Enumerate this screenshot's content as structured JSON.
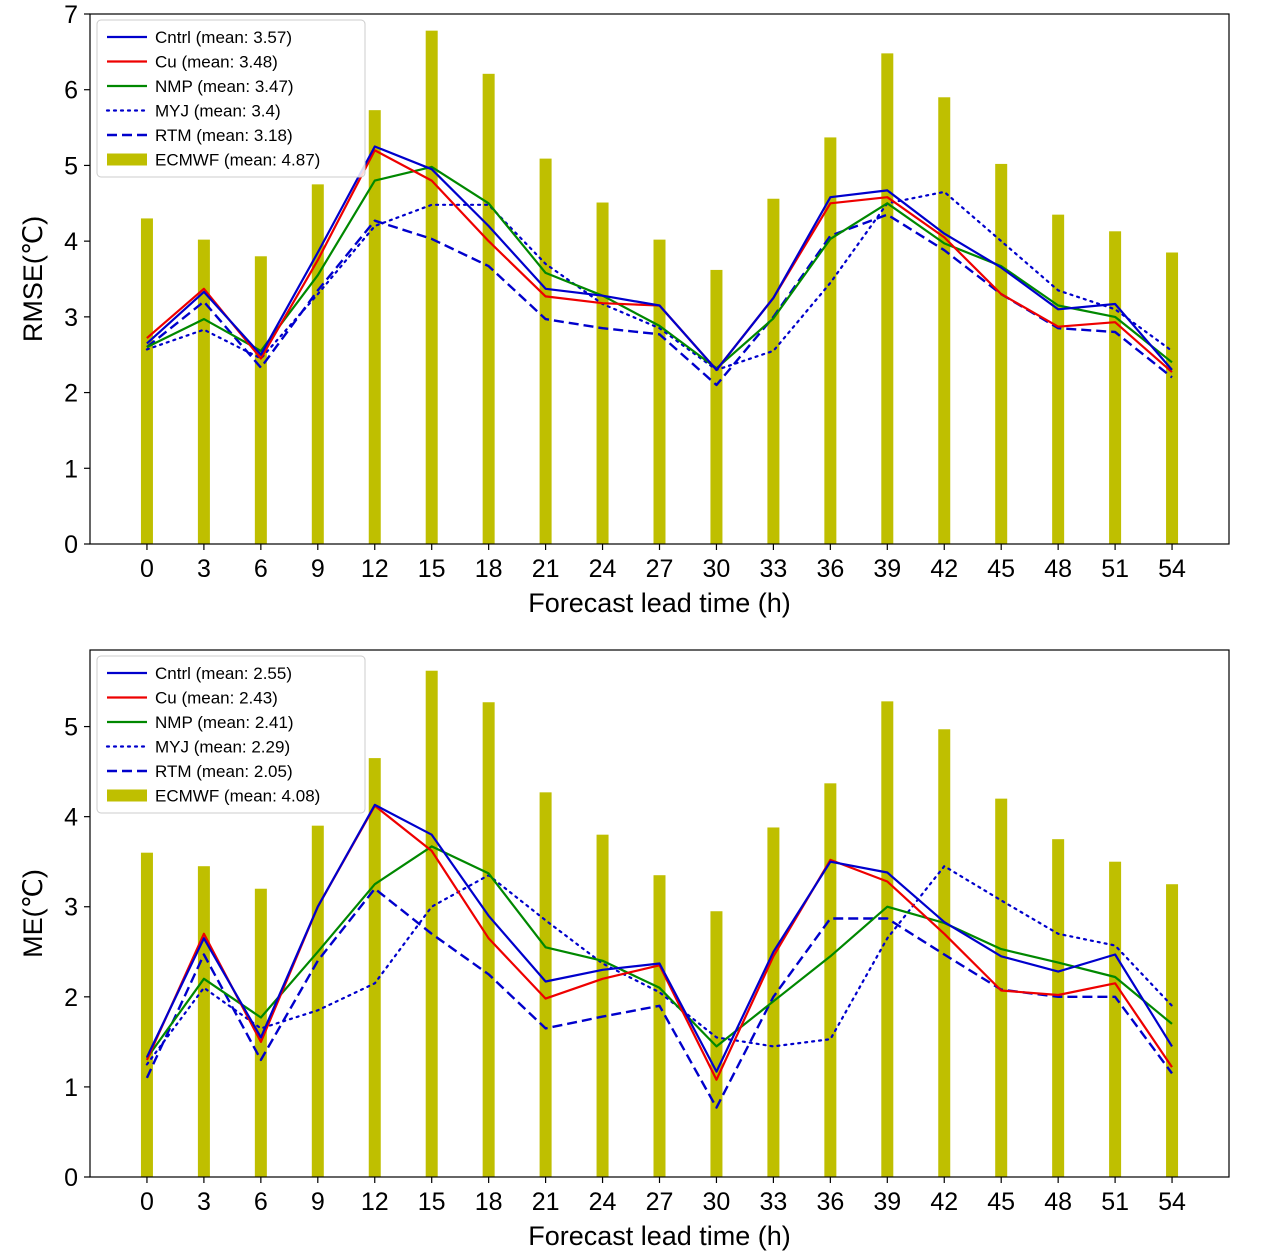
{
  "chart_data": [
    {
      "type": "bar+line",
      "xlabel": "Forecast lead time (h)",
      "ylabel": "RMSE(℃)",
      "ylim": [
        0,
        7
      ],
      "yticks": [
        0,
        1,
        2,
        3,
        4,
        5,
        6,
        7
      ],
      "x": [
        0,
        3,
        6,
        9,
        12,
        15,
        18,
        21,
        24,
        27,
        30,
        33,
        36,
        39,
        42,
        45,
        48,
        51,
        54
      ],
      "xlim": [
        -3,
        57
      ],
      "legend_position": "top-left",
      "grid": false,
      "bar_series": {
        "name": "ECMWF (mean: 4.87)",
        "color": "#bfbf00",
        "values": [
          4.3,
          4.02,
          3.8,
          4.75,
          5.73,
          6.78,
          6.21,
          5.09,
          4.51,
          4.02,
          3.62,
          4.56,
          5.37,
          6.48,
          5.9,
          5.02,
          4.35,
          4.13,
          3.85
        ]
      },
      "series": [
        {
          "name": "Cntrl (mean: 3.57)",
          "color": "#0000cc",
          "style": "solid",
          "width": 2.2,
          "values": [
            2.65,
            3.33,
            2.5,
            3.85,
            5.25,
            4.95,
            4.2,
            3.37,
            3.28,
            3.15,
            2.3,
            3.25,
            4.58,
            4.67,
            4.1,
            3.65,
            3.1,
            3.17,
            2.3
          ]
        },
        {
          "name": "Cu (mean: 3.48)",
          "color": "#ee0000",
          "style": "solid",
          "width": 2.2,
          "values": [
            2.72,
            3.37,
            2.45,
            3.75,
            5.2,
            4.8,
            4.0,
            3.27,
            3.18,
            3.15,
            2.3,
            3.25,
            4.5,
            4.58,
            4.05,
            3.3,
            2.87,
            2.93,
            2.27
          ]
        },
        {
          "name": "NMP (mean: 3.47)",
          "color": "#008800",
          "style": "solid",
          "width": 2.2,
          "values": [
            2.6,
            2.97,
            2.55,
            3.55,
            4.8,
            4.98,
            4.5,
            3.58,
            3.28,
            2.88,
            2.32,
            2.98,
            4.03,
            4.5,
            3.97,
            3.67,
            3.15,
            3.0,
            2.4
          ]
        },
        {
          "name": "MYJ (mean: 3.4)",
          "color": "#0000cc",
          "style": "dotted",
          "width": 2.2,
          "values": [
            2.57,
            2.83,
            2.45,
            3.3,
            4.2,
            4.48,
            4.48,
            3.7,
            3.17,
            2.85,
            2.3,
            2.55,
            3.45,
            4.5,
            4.65,
            4.0,
            3.35,
            3.1,
            2.55
          ]
        },
        {
          "name": "RTM (mean: 3.18)",
          "color": "#0000cc",
          "style": "dashed",
          "width": 2.4,
          "values": [
            2.6,
            3.2,
            2.33,
            3.35,
            4.27,
            4.03,
            3.67,
            2.97,
            2.85,
            2.77,
            2.1,
            3.0,
            4.07,
            4.35,
            3.88,
            3.3,
            2.85,
            2.8,
            2.2
          ]
        }
      ]
    },
    {
      "type": "bar+line",
      "xlabel": "Forecast lead time (h)",
      "ylabel": "ME(℃)",
      "ylim": [
        0,
        5.85
      ],
      "yticks": [
        0,
        1,
        2,
        3,
        4,
        5
      ],
      "x": [
        0,
        3,
        6,
        9,
        12,
        15,
        18,
        21,
        24,
        27,
        30,
        33,
        36,
        39,
        42,
        45,
        48,
        51,
        54
      ],
      "xlim": [
        -3,
        57
      ],
      "legend_position": "top-left",
      "grid": false,
      "bar_series": {
        "name": "ECMWF (mean: 4.08)",
        "color": "#bfbf00",
        "values": [
          3.6,
          3.45,
          3.2,
          3.9,
          4.65,
          5.62,
          5.27,
          4.27,
          3.8,
          3.35,
          2.95,
          3.88,
          4.37,
          5.28,
          4.97,
          4.2,
          3.75,
          3.5,
          3.25
        ]
      },
      "series": [
        {
          "name": "Cntrl (mean: 2.55)",
          "color": "#0000cc",
          "style": "solid",
          "width": 2.2,
          "values": [
            1.33,
            2.65,
            1.55,
            3.0,
            4.13,
            3.8,
            2.9,
            2.17,
            2.3,
            2.37,
            1.17,
            2.5,
            3.5,
            3.38,
            2.83,
            2.45,
            2.28,
            2.47,
            1.45
          ]
        },
        {
          "name": "Cu (mean: 2.43)",
          "color": "#ee0000",
          "style": "solid",
          "width": 2.2,
          "values": [
            1.3,
            2.7,
            1.5,
            3.0,
            4.12,
            3.62,
            2.65,
            1.98,
            2.2,
            2.35,
            1.08,
            2.45,
            3.52,
            3.28,
            2.7,
            2.07,
            2.02,
            2.15,
            1.22
          ]
        },
        {
          "name": "NMP (mean: 2.41)",
          "color": "#008800",
          "style": "solid",
          "width": 2.2,
          "values": [
            1.32,
            2.2,
            1.77,
            2.5,
            3.25,
            3.67,
            3.37,
            2.55,
            2.4,
            2.1,
            1.45,
            1.95,
            2.45,
            3.0,
            2.82,
            2.53,
            2.38,
            2.22,
            1.7
          ]
        },
        {
          "name": "MYJ (mean: 2.29)",
          "color": "#0000cc",
          "style": "dotted",
          "width": 2.2,
          "values": [
            1.25,
            2.1,
            1.65,
            1.85,
            2.15,
            3.0,
            3.35,
            2.85,
            2.37,
            2.05,
            1.55,
            1.45,
            1.53,
            2.65,
            3.45,
            3.07,
            2.7,
            2.57,
            1.9
          ]
        },
        {
          "name": "RTM (mean: 2.05)",
          "color": "#0000cc",
          "style": "dashed",
          "width": 2.4,
          "values": [
            1.1,
            2.47,
            1.3,
            2.4,
            3.2,
            2.7,
            2.25,
            1.65,
            1.78,
            1.9,
            0.77,
            2.0,
            2.87,
            2.87,
            2.47,
            2.08,
            2.0,
            2.0,
            1.15
          ]
        }
      ]
    }
  ]
}
